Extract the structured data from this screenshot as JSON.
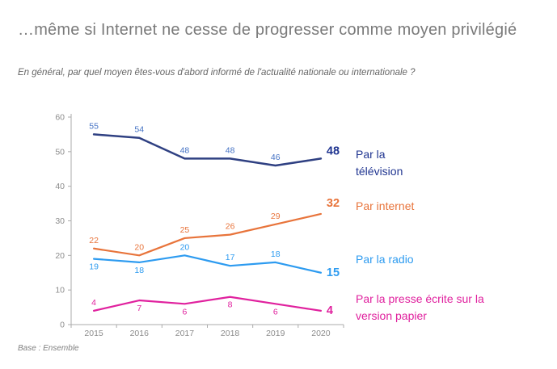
{
  "page": {
    "title": "…même si Internet ne cesse de progresser comme moyen privilégié",
    "subtitle": "En général, par quel moyen êtes-vous d'abord informé de l'actualité nationale ou internationale ?",
    "base_note": "Base : Ensemble"
  },
  "colors": {
    "background": "#FFFFFF",
    "title": "#7A7A7A",
    "subtitle": "#666666",
    "base_note": "#808080",
    "axis": "#ABABAB",
    "tick_labels": "#8C8C8C"
  },
  "chart_data": {
    "type": "line",
    "categories": [
      "2015",
      "2016",
      "2017",
      "2018",
      "2019",
      "2020"
    ],
    "series": [
      {
        "name": "Par la télévision",
        "values": [
          55,
          54,
          48,
          48,
          46,
          48
        ],
        "color": "#2F4082",
        "label_color": "#4472C4",
        "accent_color": "#1F3490",
        "label_sides": [
          "above",
          "above",
          "above",
          "above",
          "above"
        ],
        "end_label_dy": -5,
        "line_width": 2.5
      },
      {
        "name": "Par internet",
        "values": [
          22,
          20,
          25,
          26,
          29,
          32
        ],
        "color": "#E8743B",
        "label_color": "#E8743B",
        "accent_color": "#E8743B",
        "label_sides": [
          "above",
          "above",
          "above",
          "above",
          "above"
        ],
        "end_label_dy": -9,
        "line_width": 2.2
      },
      {
        "name": "Par la radio",
        "values": [
          19,
          18,
          20,
          17,
          18,
          15
        ],
        "color": "#2D9BF0",
        "label_color": "#2D9BF0",
        "accent_color": "#2D9BF0",
        "label_sides": [
          "below",
          "below",
          "above",
          "above",
          "above"
        ],
        "end_label_dy": 4,
        "line_width": 2.2
      },
      {
        "name": "Par la presse écrite sur la version papier",
        "values": [
          4,
          7,
          6,
          8,
          6,
          4
        ],
        "color": "#E0219E",
        "label_color": "#E0219E",
        "accent_color": "#E0219E",
        "label_sides": [
          "above",
          "below",
          "below",
          "below",
          "below"
        ],
        "end_label_dy": 4,
        "line_width": 2.2
      }
    ],
    "xlabel": "",
    "ylabel": "",
    "ylim": [
      0,
      60
    ],
    "yticks": [
      0,
      10,
      20,
      30,
      40,
      50,
      60
    ],
    "grid": false,
    "legend_position": "right",
    "data_labels": true
  }
}
